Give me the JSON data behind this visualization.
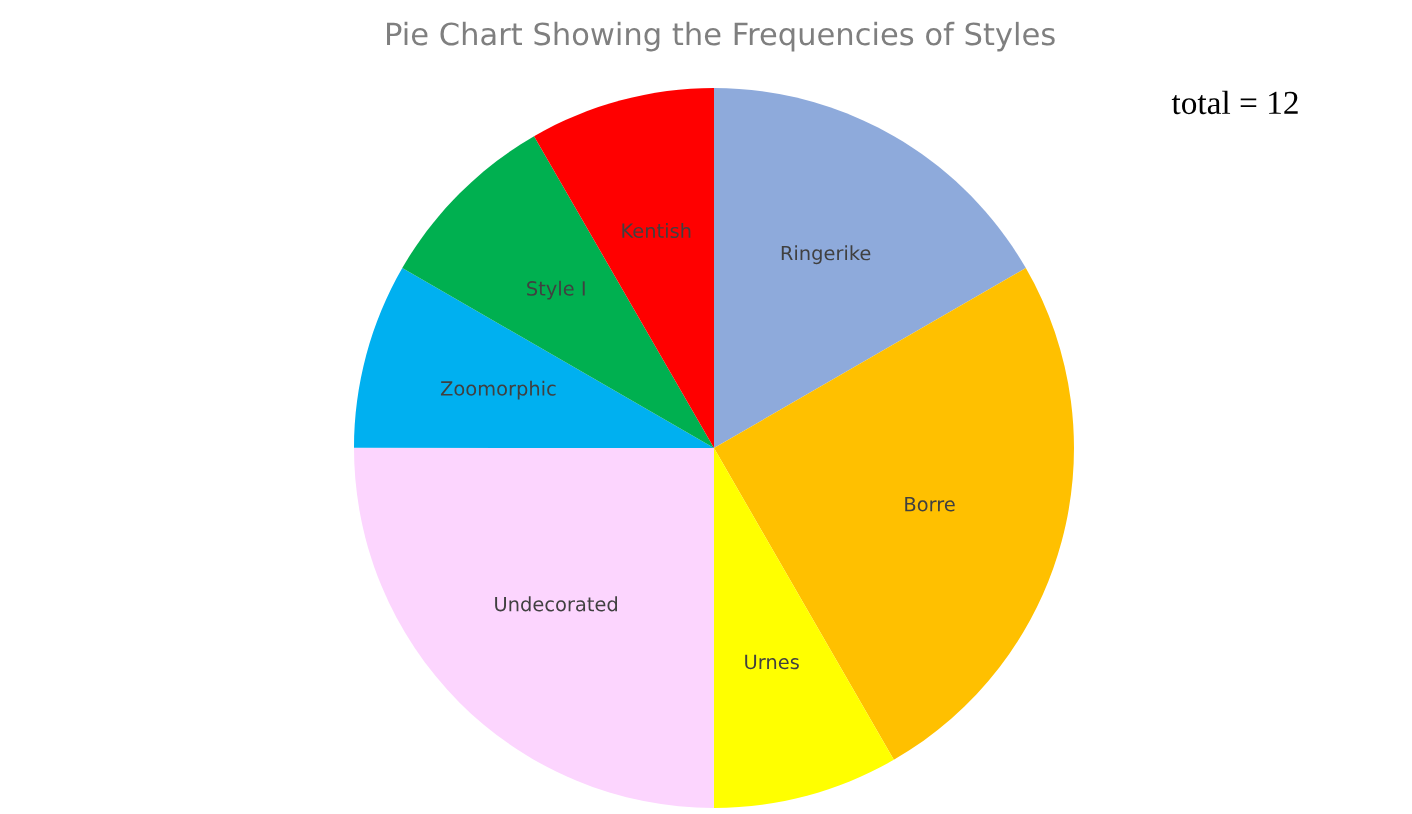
{
  "chart_data": {
    "type": "pie",
    "title": "Pie Chart Showing the Frequencies of Styles",
    "categories": [
      "Ringerike",
      "Borre",
      "Urnes",
      "Undecorated",
      "Zoomorphic",
      "Style I",
      "Kentish"
    ],
    "values": [
      16.67,
      25,
      8.33,
      25,
      8.33,
      8.33,
      8.33
    ],
    "colors": [
      "#8eaadb",
      "#ffc000",
      "#ffff00",
      "#fcd5fe",
      "#00b0f0",
      "#00b050",
      "#ff0000"
    ],
    "annotations": [
      "total = 12"
    ],
    "legend": false
  }
}
